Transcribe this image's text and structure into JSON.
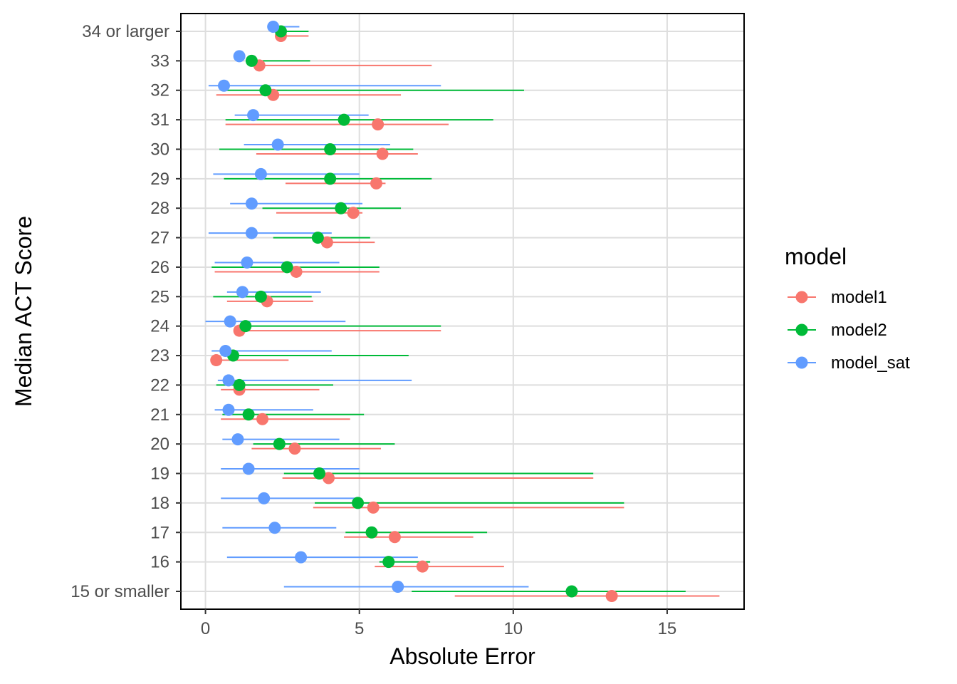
{
  "chart_data": {
    "type": "scatter",
    "subtype": "dot-with-interval",
    "title": "",
    "xlabel": "Absolute Error",
    "ylabel": "Median ACT Score",
    "xlim": [
      -0.8,
      17.5
    ],
    "xticks": [
      0,
      5,
      10,
      15
    ],
    "grid": true,
    "legend_title": "model",
    "legend_position": "right",
    "categories": [
      "15 or smaller",
      "16",
      "17",
      "18",
      "19",
      "20",
      "21",
      "22",
      "23",
      "24",
      "25",
      "26",
      "27",
      "28",
      "29",
      "30",
      "31",
      "32",
      "33",
      "34 or larger"
    ],
    "series": [
      {
        "name": "model1",
        "color": "#F8766D",
        "estimate": [
          13.2,
          7.05,
          6.15,
          5.45,
          4.0,
          2.9,
          1.85,
          1.1,
          0.35,
          1.1,
          2.0,
          2.95,
          3.95,
          4.8,
          5.55,
          5.75,
          5.6,
          2.2,
          1.75,
          2.45
        ],
        "lower": [
          8.1,
          5.5,
          4.5,
          3.5,
          2.5,
          1.5,
          0.5,
          0.5,
          0.3,
          1.3,
          0.7,
          0.3,
          4.0,
          2.3,
          2.6,
          1.65,
          0.65,
          0.35,
          1.9,
          2.35
        ],
        "upper": [
          16.7,
          9.7,
          8.7,
          13.6,
          12.6,
          5.7,
          4.7,
          3.7,
          2.7,
          7.65,
          3.5,
          5.65,
          5.5,
          5.1,
          5.85,
          6.9,
          7.9,
          6.35,
          7.35,
          3.35
        ]
      },
      {
        "name": "model2",
        "color": "#00BA38",
        "estimate": [
          11.9,
          5.95,
          5.4,
          4.95,
          3.7,
          2.4,
          1.4,
          1.1,
          0.9,
          1.3,
          1.8,
          2.65,
          3.65,
          4.4,
          4.05,
          4.05,
          4.5,
          1.95,
          1.5,
          2.45
        ],
        "lower": [
          6.7,
          5.65,
          4.55,
          3.55,
          2.55,
          1.55,
          0.55,
          0.35,
          0.75,
          1.3,
          0.25,
          0.2,
          2.2,
          1.85,
          0.6,
          0.45,
          0.65,
          0.5,
          1.85,
          2.35
        ],
        "upper": [
          15.6,
          7.3,
          9.15,
          13.6,
          12.6,
          6.15,
          5.15,
          4.15,
          6.6,
          7.65,
          3.45,
          5.65,
          5.35,
          6.35,
          7.35,
          6.75,
          9.35,
          10.35,
          3.4,
          3.35
        ]
      },
      {
        "name": "model_sat",
        "color": "#619CFF",
        "estimate": [
          6.25,
          3.1,
          2.25,
          1.9,
          1.4,
          1.05,
          0.75,
          0.75,
          0.65,
          0.8,
          1.2,
          1.35,
          1.5,
          1.5,
          1.8,
          2.35,
          1.55,
          0.6,
          1.1,
          2.2
        ],
        "lower": [
          2.55,
          0.7,
          0.55,
          0.5,
          0.5,
          0.55,
          0.3,
          0.4,
          0.2,
          0.0,
          0.7,
          0.3,
          0.1,
          0.8,
          0.25,
          1.25,
          0.95,
          0.1,
          1.0,
          2.1
        ],
        "upper": [
          10.5,
          6.9,
          4.25,
          5.0,
          5.0,
          4.35,
          3.5,
          6.7,
          4.1,
          4.55,
          3.75,
          4.35,
          4.1,
          5.1,
          5.0,
          6.0,
          5.3,
          7.65,
          1.25,
          3.05
        ]
      }
    ]
  }
}
